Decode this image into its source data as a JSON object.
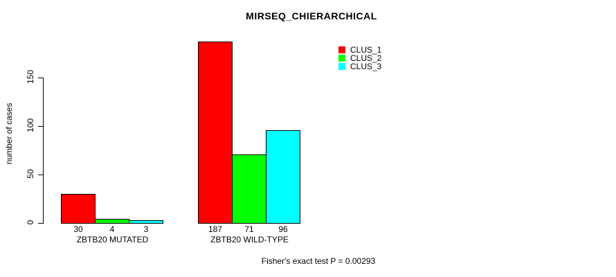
{
  "chart_data": {
    "type": "bar",
    "title": "MIRSEQ_CHIERARCHICAL",
    "ylabel": "number of cases",
    "xlabel": "",
    "yticks": [
      0,
      50,
      100,
      150
    ],
    "ylim": [
      0,
      150
    ],
    "grid": false,
    "legend_position": "top-right-inside",
    "categories": [
      "ZBTB20 MUTATED",
      "ZBTB20 WILD-TYPE"
    ],
    "series": [
      {
        "name": "CLUS_1",
        "color": "#ff0000",
        "values": [
          30,
          187
        ]
      },
      {
        "name": "CLUS_2",
        "color": "#00ff00",
        "values": [
          4,
          71
        ]
      },
      {
        "name": "CLUS_3",
        "color": "#00ffff",
        "values": [
          3,
          96
        ]
      }
    ],
    "bar_value_labels": [
      [
        "30",
        "4",
        "3"
      ],
      [
        "187",
        "71",
        "96"
      ]
    ],
    "annotation": "Fisher's exact test P = 0.00293"
  }
}
